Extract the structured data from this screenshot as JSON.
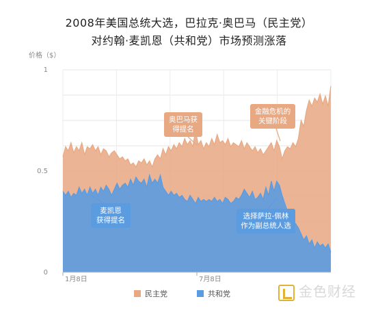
{
  "chart_data": {
    "type": "area",
    "title_line1": "2008年美国总统大选，巴拉克·奥巴马（民主党）",
    "title_line2": "对约翰·麦凯恩（共和党）市场预测涨落",
    "ylabel": "价格（$）",
    "ylim": [
      0,
      1
    ],
    "yticks": [
      "0",
      "0.5",
      "1"
    ],
    "xticks": [
      "1月8日",
      "7月8日"
    ],
    "grid": true,
    "legend_position": "bottom",
    "series": [
      {
        "name": "民主党",
        "color": "#e8a882",
        "values": [
          0.57,
          0.62,
          0.6,
          0.64,
          0.59,
          0.62,
          0.6,
          0.64,
          0.58,
          0.62,
          0.61,
          0.63,
          0.6,
          0.62,
          0.58,
          0.61,
          0.6,
          0.57,
          0.59,
          0.6,
          0.58,
          0.56,
          0.57,
          0.55,
          0.56,
          0.53,
          0.54,
          0.52,
          0.55,
          0.54,
          0.56,
          0.53,
          0.55,
          0.52,
          0.56,
          0.58,
          0.56,
          0.61,
          0.58,
          0.62,
          0.6,
          0.63,
          0.61,
          0.64,
          0.62,
          0.66,
          0.63,
          0.65,
          0.62,
          0.7,
          0.63,
          0.65,
          0.61,
          0.64,
          0.62,
          0.66,
          0.63,
          0.68,
          0.64,
          0.65,
          0.63,
          0.66,
          0.62,
          0.64,
          0.63,
          0.62,
          0.65,
          0.61,
          0.64,
          0.62,
          0.6,
          0.62,
          0.59,
          0.61,
          0.58,
          0.6,
          0.62,
          0.64,
          0.6,
          0.65,
          0.62,
          0.56,
          0.6,
          0.62,
          0.61,
          0.64,
          0.62,
          0.66,
          0.75,
          0.72,
          0.8,
          0.85,
          0.82,
          0.86,
          0.84,
          0.88,
          0.83,
          0.87,
          0.82,
          0.92
        ]
      },
      {
        "name": "共和党",
        "color": "#5b9be0",
        "values": [
          0.4,
          0.38,
          0.4,
          0.37,
          0.39,
          0.38,
          0.42,
          0.39,
          0.41,
          0.38,
          0.42,
          0.39,
          0.41,
          0.38,
          0.42,
          0.4,
          0.43,
          0.41,
          0.38,
          0.41,
          0.44,
          0.41,
          0.43,
          0.44,
          0.42,
          0.46,
          0.43,
          0.47,
          0.45,
          0.44,
          0.46,
          0.42,
          0.48,
          0.44,
          0.46,
          0.44,
          0.48,
          0.42,
          0.4,
          0.38,
          0.4,
          0.38,
          0.39,
          0.37,
          0.38,
          0.36,
          0.35,
          0.38,
          0.36,
          0.34,
          0.37,
          0.35,
          0.36,
          0.35,
          0.36,
          0.35,
          0.37,
          0.35,
          0.36,
          0.34,
          0.37,
          0.36,
          0.34,
          0.35,
          0.37,
          0.36,
          0.38,
          0.41,
          0.39,
          0.37,
          0.4,
          0.36,
          0.37,
          0.39,
          0.36,
          0.42,
          0.38,
          0.45,
          0.4,
          0.45,
          0.43,
          0.38,
          0.34,
          0.3,
          0.28,
          0.26,
          0.24,
          0.22,
          0.19,
          0.16,
          0.18,
          0.14,
          0.16,
          0.12,
          0.15,
          0.13,
          0.14,
          0.12,
          0.14,
          0.1
        ]
      }
    ],
    "annotations": [
      {
        "lines": [
          "奥巴马获",
          "得提名"
        ],
        "color": "#e8a882",
        "x_index": 49,
        "series": 0
      },
      {
        "lines": [
          "金融危机的",
          "关键阶段"
        ],
        "color": "#e8a882",
        "x_index": 82,
        "series": 0
      },
      {
        "lines": [
          "麦凯恩",
          "获得提名"
        ],
        "color": "#5b9be0",
        "x_index": 15,
        "series": 1
      },
      {
        "lines": [
          "选择萨拉-佩林",
          "作为副总统人选"
        ],
        "color": "#5b9be0",
        "x_index": 81,
        "series": 1
      }
    ]
  },
  "watermark": "金色财经"
}
